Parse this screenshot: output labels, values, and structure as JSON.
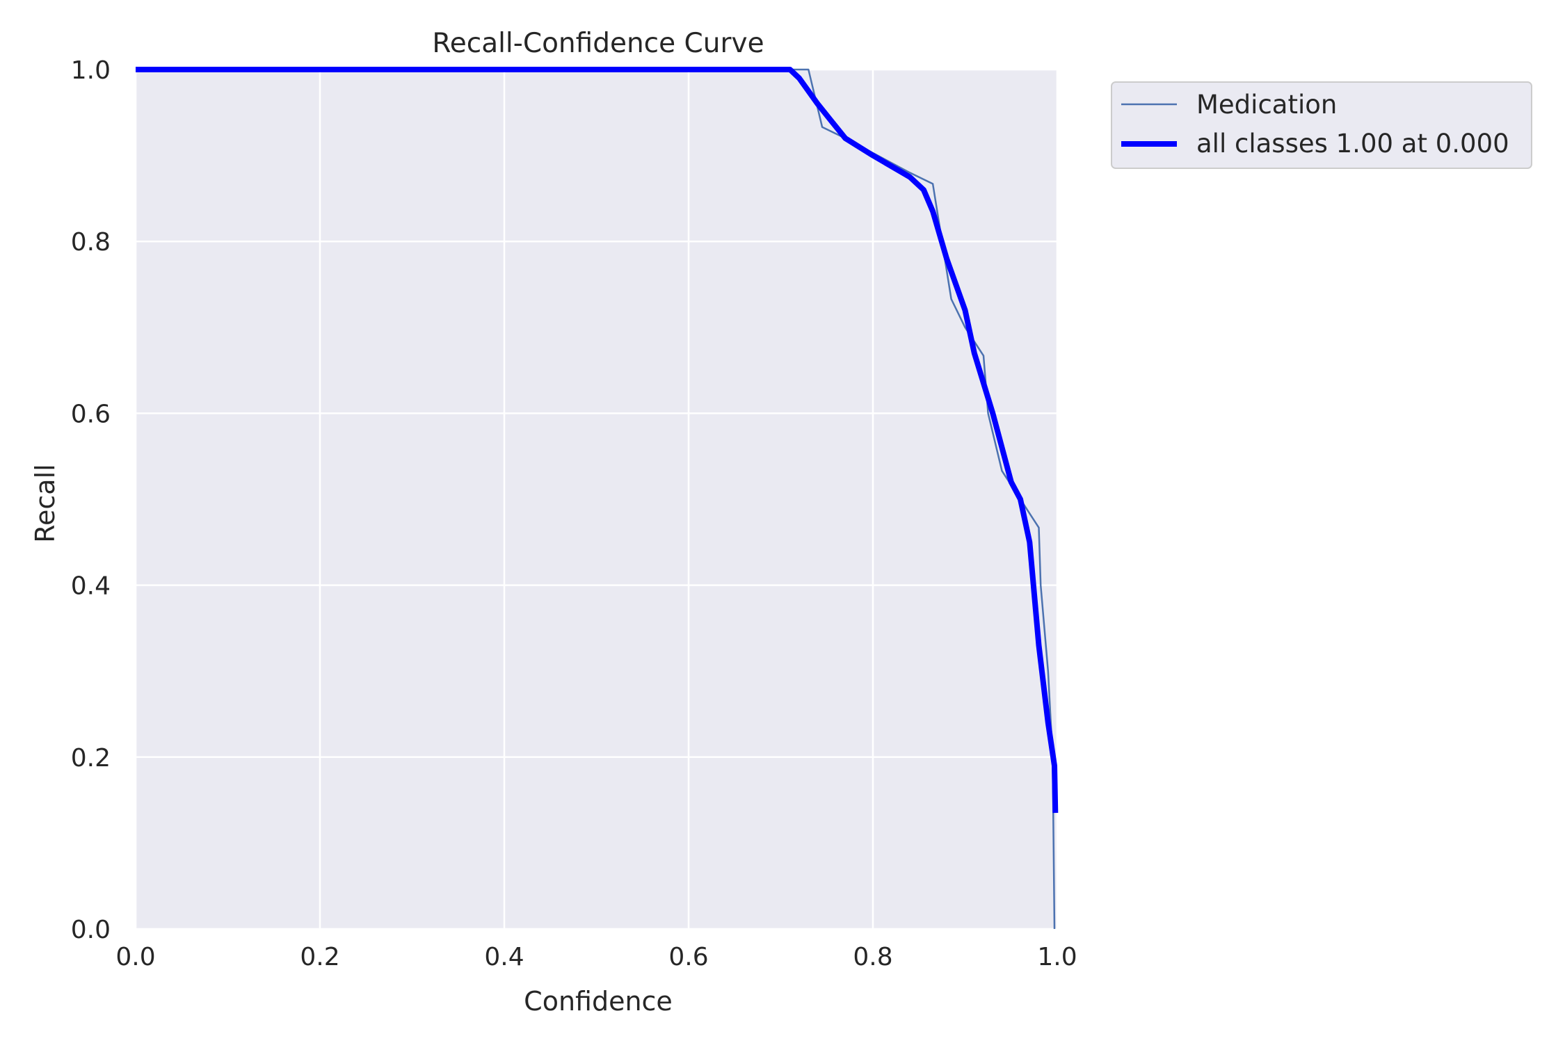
{
  "chart_data": {
    "type": "line",
    "title": "Recall-Confidence Curve",
    "xlabel": "Confidence",
    "ylabel": "Recall",
    "xlim": [
      0,
      1
    ],
    "ylim": [
      0,
      1
    ],
    "xticks": [
      "0.0",
      "0.2",
      "0.4",
      "0.6",
      "0.8",
      "1.0"
    ],
    "yticks": [
      "0.0",
      "0.2",
      "0.4",
      "0.6",
      "0.8",
      "1.0"
    ],
    "grid": true,
    "legend_position": "outside upper right",
    "series": [
      {
        "name": "Medication",
        "color": "#4c72b0",
        "x": [
          0.0,
          0.7,
          0.73,
          0.745,
          0.77,
          0.84,
          0.865,
          0.885,
          0.9,
          0.92,
          0.925,
          0.94,
          0.98,
          0.982,
          0.99,
          0.995,
          0.997
        ],
        "y": [
          1.0,
          1.0,
          1.0,
          0.933,
          0.92,
          0.88,
          0.867,
          0.733,
          0.7,
          0.667,
          0.6,
          0.533,
          0.467,
          0.4,
          0.3,
          0.2,
          0.0
        ]
      },
      {
        "name": "all classes 1.00 at 0.000",
        "color": "#0000ff",
        "x": [
          0.0,
          0.71,
          0.72,
          0.74,
          0.755,
          0.77,
          0.8,
          0.84,
          0.855,
          0.865,
          0.88,
          0.9,
          0.91,
          0.93,
          0.95,
          0.96,
          0.97,
          0.98,
          0.99,
          0.997,
          0.998
        ],
        "y": [
          1.0,
          1.0,
          0.99,
          0.96,
          0.94,
          0.92,
          0.9,
          0.875,
          0.86,
          0.835,
          0.78,
          0.72,
          0.67,
          0.6,
          0.52,
          0.5,
          0.45,
          0.33,
          0.24,
          0.19,
          0.135
        ]
      }
    ]
  }
}
